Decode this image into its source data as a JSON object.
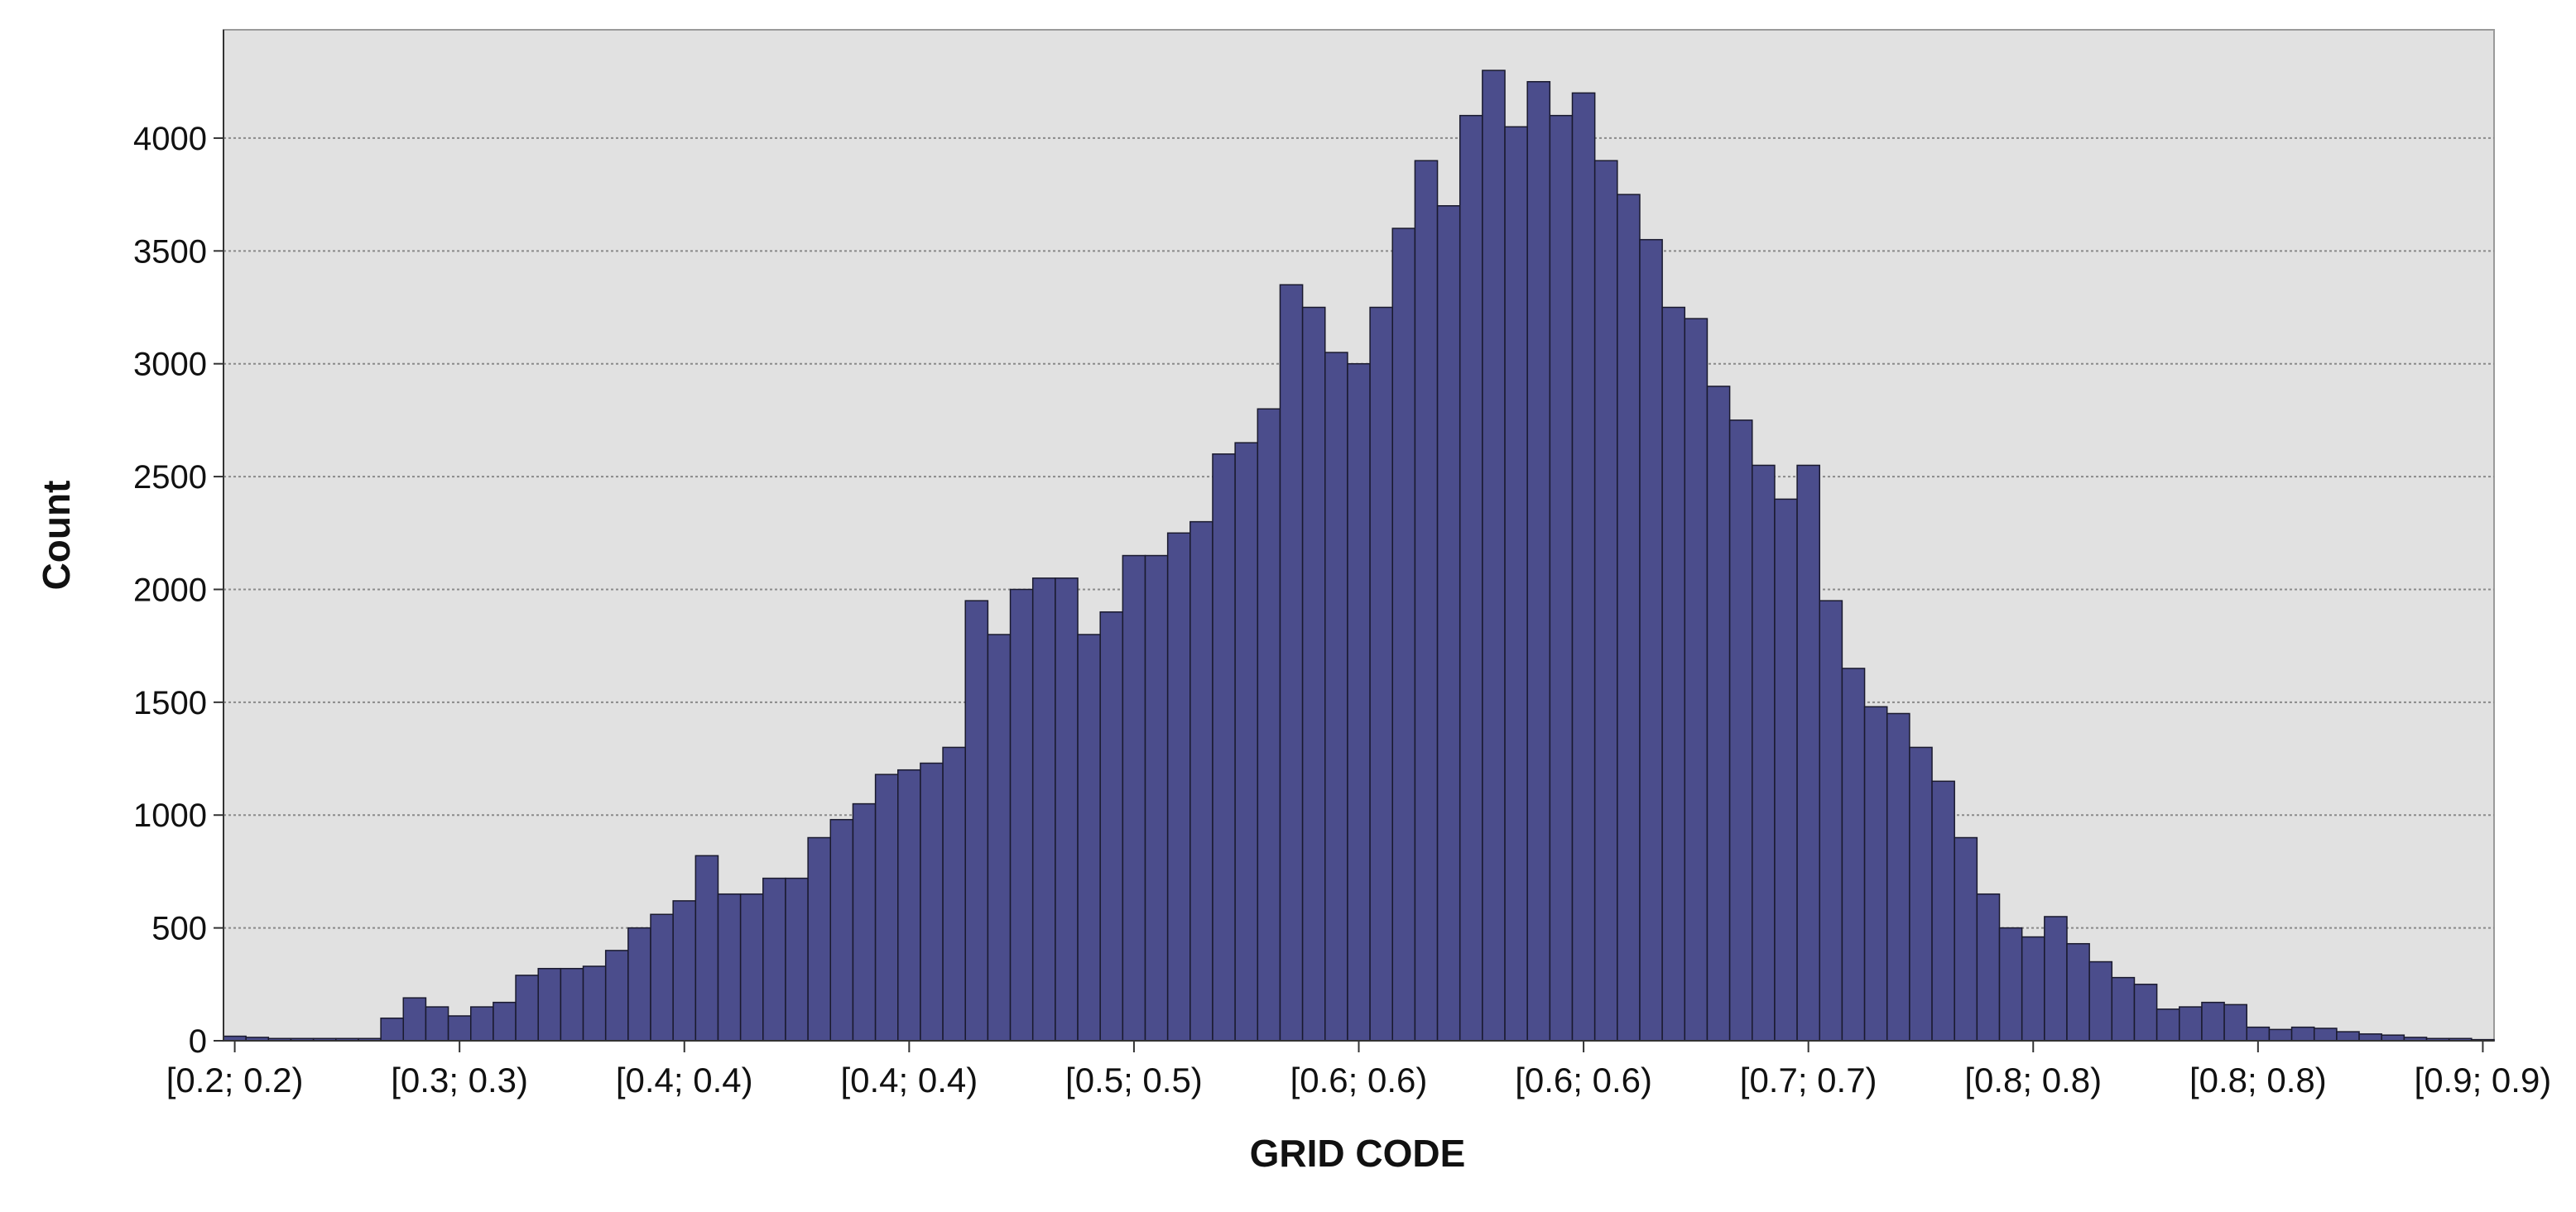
{
  "chart_data": {
    "type": "bar",
    "x_label": "GRID CODE",
    "y_label": "Count",
    "color": "#4b4d8c",
    "edge_color": "#1a1a2e",
    "grid": true,
    "categories": [
      "[0.2; 0.2)",
      null,
      null,
      null,
      null,
      null,
      null,
      null,
      null,
      null,
      "[0.3; 0.3)",
      null,
      null,
      null,
      null,
      null,
      null,
      null,
      null,
      null,
      "[0.4; 0.4)",
      null,
      null,
      null,
      null,
      null,
      null,
      null,
      null,
      null,
      "[0.4; 0.4)",
      null,
      null,
      null,
      null,
      null,
      null,
      null,
      null,
      null,
      "[0.5; 0.5)",
      null,
      null,
      null,
      null,
      null,
      null,
      null,
      null,
      null,
      "[0.6; 0.6)",
      null,
      null,
      null,
      null,
      null,
      null,
      null,
      null,
      null,
      "[0.6; 0.6)",
      null,
      null,
      null,
      null,
      null,
      null,
      null,
      null,
      null,
      "[0.7; 0.7)",
      null,
      null,
      null,
      null,
      null,
      null,
      null,
      null,
      null,
      "[0.8; 0.8)",
      null,
      null,
      null,
      null,
      null,
      null,
      null,
      null,
      null,
      "[0.8; 0.8)",
      null,
      null,
      null,
      null,
      null,
      null,
      null,
      null,
      null,
      "[0.9; 0.9)"
    ],
    "values": [
      20,
      15,
      10,
      10,
      10,
      10,
      10,
      100,
      190,
      150,
      110,
      150,
      170,
      290,
      320,
      320,
      330,
      400,
      500,
      560,
      620,
      820,
      650,
      650,
      720,
      720,
      900,
      980,
      1050,
      1180,
      1200,
      1230,
      1300,
      1950,
      1800,
      2000,
      2050,
      2050,
      1800,
      1900,
      2150,
      2150,
      2250,
      2300,
      2600,
      2650,
      2800,
      3350,
      3250,
      3050,
      3000,
      3250,
      3600,
      3900,
      3700,
      4100,
      4300,
      4050,
      4250,
      4100,
      4200,
      3900,
      3750,
      3550,
      3250,
      3200,
      2900,
      2750,
      2550,
      2400,
      2550,
      1950,
      1650,
      1480,
      1450,
      1300,
      1150,
      900,
      650,
      500,
      460,
      550,
      430,
      350,
      280,
      250,
      140,
      150,
      170,
      160,
      60,
      50,
      60,
      55,
      40,
      30,
      25,
      15,
      10,
      10,
      5
    ],
    "ylim": [
      0,
      4480
    ],
    "yticks": [
      0,
      500,
      1000,
      1500,
      2000,
      2500,
      3000,
      3500,
      4000
    ]
  }
}
